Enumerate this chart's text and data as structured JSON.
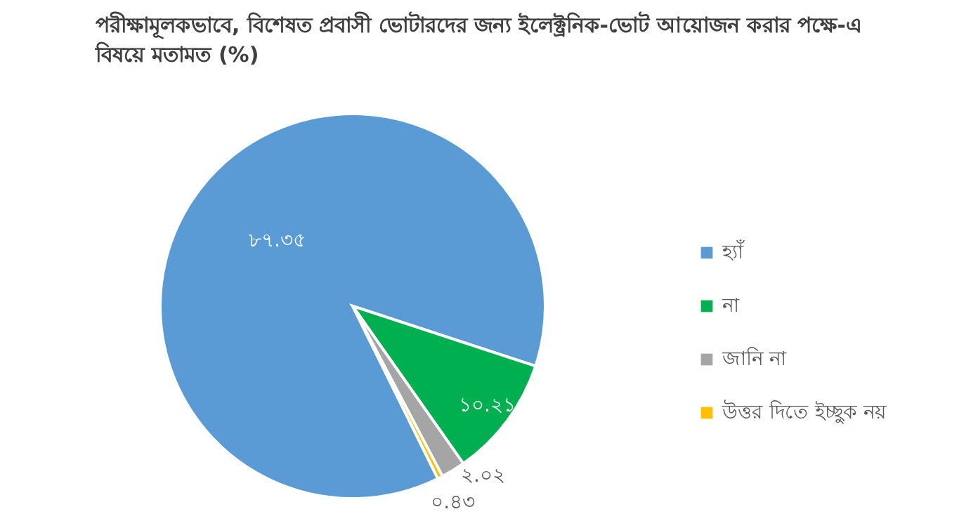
{
  "chart_data": {
    "type": "pie",
    "title": "পরীক্ষামূলকভাবে, বিশেষত প্রবাসী ভোটারদের জন্য ইলেক্ট্রনিক-ভোট আয়োজন করার পক্ষে-এ বিষয়ে মতামত (%)",
    "categories": [
      "হ্যাঁ",
      "না",
      "জানি না",
      "উত্তর দিতে ইচ্ছুক নয়"
    ],
    "values": [
      87.35,
      10.21,
      2.02,
      0.43
    ],
    "value_labels": [
      "৮৭.৩৫",
      "১০.২১",
      "২.০২",
      "০.৪৩"
    ],
    "colors": [
      "#5b9bd5",
      "#00b050",
      "#a5a5a5",
      "#ffc000"
    ],
    "legend": "right"
  }
}
